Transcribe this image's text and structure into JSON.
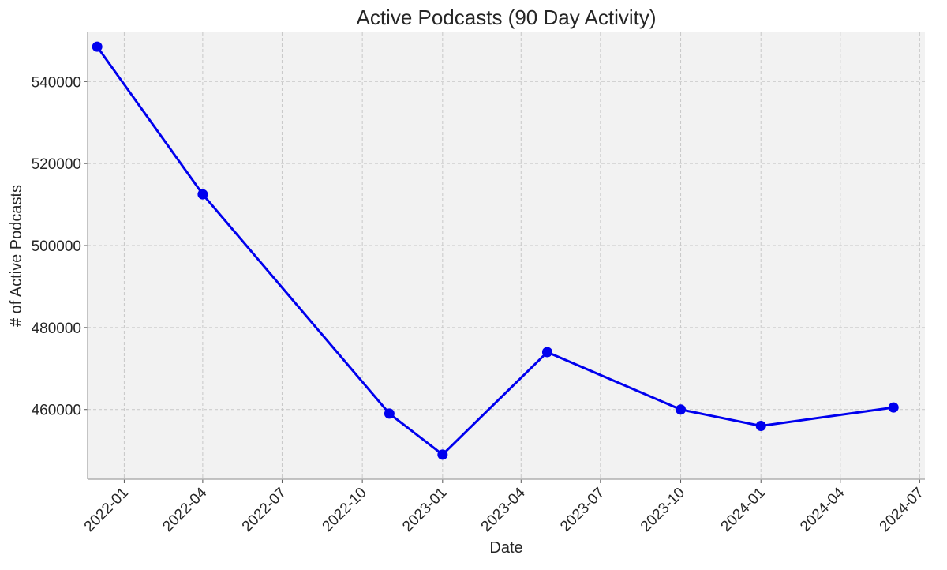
{
  "chart_data": {
    "type": "line",
    "title": "Active Podcasts (90 Day Activity)",
    "xlabel": "Date",
    "ylabel": "# of Active Podcasts",
    "x_tick_labels": [
      "2022-01",
      "2022-04",
      "2022-07",
      "2022-10",
      "2023-01",
      "2023-04",
      "2023-07",
      "2023-10",
      "2024-01",
      "2024-04",
      "2024-07"
    ],
    "y_tick_labels": [
      "460000",
      "480000",
      "500000",
      "520000",
      "540000"
    ],
    "ylim": [
      443000,
      552000
    ],
    "xlim": [
      "2021-11-20",
      "2024-07-07"
    ],
    "grid": true,
    "series": [
      {
        "x": [
          "2021-12-01",
          "2022-04-01",
          "2022-11-01",
          "2023-01-01",
          "2023-05-01",
          "2023-10-01",
          "2024-01-01",
          "2024-06-01"
        ],
        "values": [
          548500,
          512500,
          459000,
          449000,
          474000,
          460000,
          456000,
          460500
        ],
        "color": "#0000ee"
      }
    ],
    "colors": {
      "plot_background": "#f2f2f2",
      "grid": "#c8c8c8",
      "axis": "#b0b0b0",
      "line": "#0000ee"
    }
  }
}
